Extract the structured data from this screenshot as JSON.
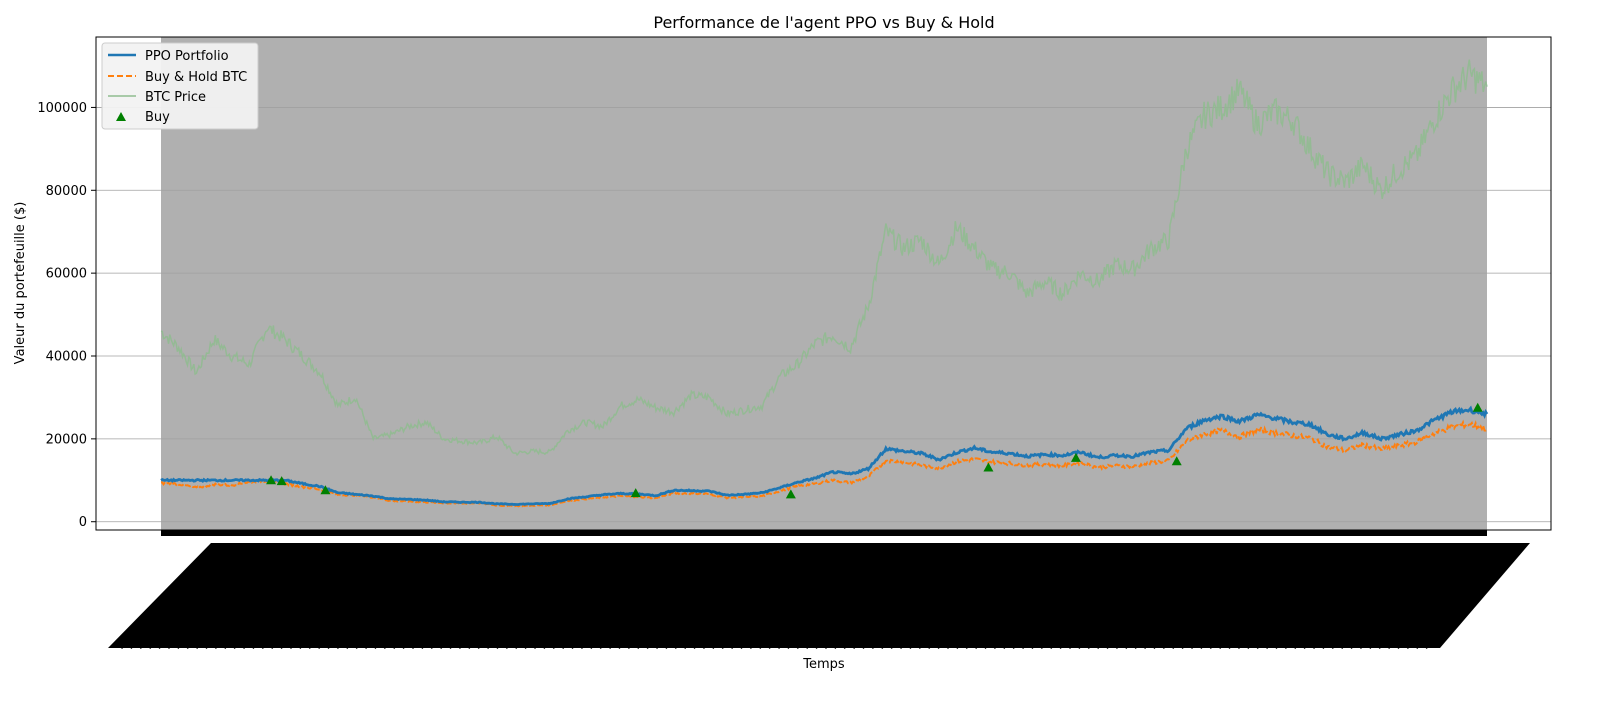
{
  "chart_data": {
    "type": "line",
    "title": "Performance de l'agent PPO vs Buy & Hold",
    "xlabel": "Temps",
    "ylabel": "Valeur du portefeuille ($)",
    "ylim": [
      -2000,
      117000
    ],
    "yticks": [
      0,
      20000,
      40000,
      60000,
      80000,
      100000
    ],
    "grid": "horizontal",
    "legend_position": "top-left",
    "x_tick_labels": "illegible (thousands of overlapping rotated labels)",
    "x": [
      0,
      2,
      4,
      6,
      8,
      10,
      12,
      14,
      16,
      18,
      20,
      22,
      24,
      26,
      28,
      30,
      32,
      34,
      36,
      38,
      40,
      42,
      44,
      46,
      48,
      50,
      52,
      54,
      56,
      58,
      60,
      62,
      64,
      66,
      68,
      70,
      72,
      74,
      76,
      78,
      80,
      82,
      84,
      86,
      88,
      90,
      92,
      94,
      96,
      98,
      100
    ],
    "series": [
      {
        "name": "PPO Portfolio",
        "color": "#1f77b4",
        "style": "solid",
        "values": [
          10000,
          10000,
          10000,
          10000,
          10000,
          10000,
          10000,
          10000,
          9200,
          8500,
          7000,
          6600,
          6200,
          5500,
          5400,
          5200,
          4800,
          4700,
          4700,
          4300,
          4200,
          4300,
          4400,
          5500,
          6000,
          6500,
          6800,
          6700,
          6300,
          7600,
          7500,
          7400,
          6400,
          6600,
          7000,
          8200,
          9500,
          10500,
          12000,
          11500,
          12800,
          17600,
          17000,
          16500,
          15000,
          16700,
          17800,
          16800,
          16500,
          15800,
          16200
        ]
      },
      {
        "name": "Buy & Hold BTC",
        "color": "#ff7f0e",
        "style": "dashed",
        "values": [
          9300,
          9100,
          8200,
          9000,
          8800,
          9600,
          9900,
          9200,
          8400,
          7800,
          6500,
          6400,
          5900,
          5000,
          4900,
          4700,
          4500,
          4400,
          4500,
          3900,
          3800,
          3900,
          4000,
          5000,
          5500,
          5900,
          6200,
          6000,
          5700,
          6900,
          6800,
          6700,
          5800,
          5900,
          6200,
          7400,
          8600,
          9200,
          10000,
          9400,
          10800,
          14800,
          14400,
          13600,
          12900,
          14500,
          15100,
          14400,
          14100,
          13600,
          13900
        ]
      },
      {
        "name": "BTC Price",
        "color": "#8fbc8f",
        "style": "solid",
        "values": [
          46000,
          42000,
          36000,
          44000,
          40000,
          38000,
          47000,
          44000,
          40000,
          36000,
          28000,
          30000,
          20000,
          21000,
          23000,
          24000,
          20000,
          19500,
          19000,
          20500,
          16500,
          17000,
          16800,
          22000,
          24000,
          23000,
          28000,
          29500,
          27500,
          26500,
          30500,
          30000,
          26000,
          27000,
          28000,
          35000,
          38000,
          43000,
          45000,
          42000,
          52000,
          70000,
          66000,
          68000,
          62000,
          71000,
          66000,
          61000,
          60000,
          55000,
          58000
        ]
      },
      {
        "name": "Buy",
        "color": "#008000",
        "style": "marker-triangle",
        "points": [
          [
            8.3,
            10000
          ],
          [
            9.1,
            9800
          ],
          [
            12.4,
            7600
          ],
          [
            35.8,
            6900
          ],
          [
            47.5,
            6600
          ],
          [
            62.4,
            13100
          ],
          [
            69.0,
            15400
          ],
          [
            76.6,
            14600
          ],
          [
            99.3,
            27500
          ]
        ]
      }
    ]
  },
  "extension": {
    "x": [
      52,
      54,
      56,
      58,
      60,
      62,
      64,
      66,
      68,
      70,
      72,
      74,
      76,
      78,
      80,
      82,
      84,
      86,
      88,
      90,
      92,
      94,
      96,
      98,
      100
    ]
  }
}
